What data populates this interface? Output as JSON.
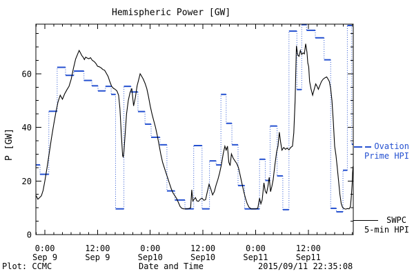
{
  "title": "Hemispheric Power [GW]",
  "y_axis": {
    "label": "P [GW]"
  },
  "footer": {
    "left": "Plot: CCMC",
    "center": "Date and Time",
    "right": "2015/09/11 22:35:08"
  },
  "legend": {
    "ovation": {
      "line1": "Ovation",
      "line2": "Prime HPI",
      "color": "#2450d0"
    },
    "swpc": {
      "line1": "SWPC",
      "line2": "5-min HPI",
      "color": "#000000"
    }
  },
  "chart_data": {
    "type": "line",
    "title": "Hemispheric Power [GW]",
    "xlabel": "Date and Time",
    "ylabel": "P [GW]",
    "x_unit": "hours since 2015-09-09 00:00 UT",
    "x_range": [
      -2.05,
      70.25
    ],
    "y_range": [
      0,
      78.5
    ],
    "y_major_ticks": [
      0,
      20,
      40,
      60
    ],
    "y_minor_step": 5,
    "x_minor_step_hours": 2,
    "x_tick_labels": [
      {
        "h": 0,
        "top": "0:00",
        "bottom": "Sep 9"
      },
      {
        "h": 12,
        "top": "12:00",
        "bottom": "Sep 9"
      },
      {
        "h": 24,
        "top": "0:00",
        "bottom": "Sep10"
      },
      {
        "h": 36,
        "top": "12:00",
        "bottom": "Sep10"
      },
      {
        "h": 48,
        "top": "0:00",
        "bottom": "Sep11"
      },
      {
        "h": 60,
        "top": "12:00",
        "bottom": "Sep11"
      }
    ],
    "grid": false,
    "legend_position": "right-outside",
    "series": [
      {
        "name": "Ovation Prime HPI",
        "color": "#2450d0",
        "style": "step-horizontal-solid-vertical-dotted",
        "steps_h0_h1_gw": [
          [
            -2.05,
            -1.1,
            26
          ],
          [
            -1.1,
            0.9,
            22.5
          ],
          [
            0.9,
            2.8,
            46
          ],
          [
            2.8,
            4.7,
            62.4
          ],
          [
            4.7,
            6.6,
            59.4
          ],
          [
            6.6,
            8.9,
            61
          ],
          [
            8.9,
            10.7,
            57.5
          ],
          [
            10.7,
            12.1,
            55.5
          ],
          [
            12.1,
            13.8,
            53.6
          ],
          [
            13.8,
            15.1,
            55.3
          ],
          [
            15.1,
            16.1,
            52.3
          ],
          [
            16.1,
            18,
            9.6
          ],
          [
            18,
            19.6,
            55.3
          ],
          [
            19.6,
            21.2,
            53.2
          ],
          [
            21.2,
            22.8,
            45.9
          ],
          [
            22.8,
            24.2,
            41.2
          ],
          [
            24.2,
            26.2,
            36.3
          ],
          [
            26.2,
            27.8,
            33.5
          ],
          [
            27.8,
            29.6,
            16.3
          ],
          [
            29.6,
            31.9,
            12.9
          ],
          [
            31.9,
            33.9,
            9.6
          ],
          [
            33.9,
            35.8,
            33.2
          ],
          [
            35.8,
            37.5,
            9.6
          ],
          [
            37.5,
            39,
            27.5
          ],
          [
            39,
            40.1,
            26
          ],
          [
            40.1,
            41.3,
            52.3
          ],
          [
            41.3,
            42.6,
            41.5
          ],
          [
            42.6,
            44,
            33.5
          ],
          [
            44,
            45.5,
            18.3
          ],
          [
            45.5,
            48.9,
            9.6
          ],
          [
            48.9,
            50.2,
            28.1
          ],
          [
            50.2,
            51.3,
            20.2
          ],
          [
            51.3,
            52.9,
            40.5
          ],
          [
            52.9,
            54.2,
            21.9
          ],
          [
            54.2,
            55.6,
            9.3
          ],
          [
            55.6,
            57.4,
            75.9
          ],
          [
            57.4,
            58.5,
            54.1
          ],
          [
            58.5,
            59.6,
            78.3
          ],
          [
            59.6,
            61.6,
            76.2
          ],
          [
            61.6,
            63.6,
            73.4
          ],
          [
            63.6,
            65.1,
            65.2
          ],
          [
            65.1,
            66.4,
            9.8
          ],
          [
            66.4,
            67.9,
            8.5
          ],
          [
            67.9,
            68.9,
            24
          ],
          [
            68.9,
            69.9,
            78
          ],
          [
            69.9,
            70.25,
            33.7
          ]
        ]
      },
      {
        "name": "SWPC 5-min HPI",
        "color": "#000000",
        "style": "solid",
        "points_h_gw": [
          [
            -2.05,
            14.7
          ],
          [
            -1.6,
            13.2
          ],
          [
            -1.2,
            13.8
          ],
          [
            -0.8,
            14.5
          ],
          [
            -0.4,
            16.5
          ],
          [
            0,
            20
          ],
          [
            0.5,
            25
          ],
          [
            1,
            30.5
          ],
          [
            1.5,
            36
          ],
          [
            2,
            41
          ],
          [
            2.5,
            45.5
          ],
          [
            3,
            49.5
          ],
          [
            3.5,
            52
          ],
          [
            4,
            50.5
          ],
          [
            4.5,
            52.5
          ],
          [
            5,
            54
          ],
          [
            5.5,
            55.3
          ],
          [
            6,
            58
          ],
          [
            6.5,
            62
          ],
          [
            7,
            65.5
          ],
          [
            7.5,
            67.5
          ],
          [
            7.8,
            68.7
          ],
          [
            8.1,
            67.8
          ],
          [
            8.4,
            66.8
          ],
          [
            8.7,
            66.2
          ],
          [
            9,
            65.3
          ],
          [
            9.3,
            66.2
          ],
          [
            9.6,
            65.9
          ],
          [
            10,
            65.6
          ],
          [
            10.4,
            66
          ],
          [
            10.8,
            65
          ],
          [
            11.2,
            64.6
          ],
          [
            11.6,
            63.9
          ],
          [
            12,
            62.8
          ],
          [
            12.4,
            62.6
          ],
          [
            12.8,
            62.2
          ],
          [
            13.2,
            61.6
          ],
          [
            13.6,
            61.3
          ],
          [
            14,
            60.2
          ],
          [
            14.4,
            59
          ],
          [
            14.8,
            57
          ],
          [
            15.2,
            55.3
          ],
          [
            15.6,
            54.6
          ],
          [
            16,
            54.2
          ],
          [
            16.4,
            53.6
          ],
          [
            16.8,
            52
          ],
          [
            17.1,
            47
          ],
          [
            17.4,
            38
          ],
          [
            17.7,
            29.5
          ],
          [
            17.85,
            28.8
          ],
          [
            18,
            31
          ],
          [
            18.3,
            38
          ],
          [
            18.6,
            45
          ],
          [
            19,
            50
          ],
          [
            19.4,
            53
          ],
          [
            19.8,
            54.5
          ],
          [
            20.2,
            48
          ],
          [
            20.6,
            51
          ],
          [
            21,
            55.5
          ],
          [
            21.4,
            58
          ],
          [
            21.7,
            60
          ],
          [
            22,
            59.2
          ],
          [
            22.4,
            58
          ],
          [
            22.8,
            56.5
          ],
          [
            23.2,
            54.5
          ],
          [
            23.6,
            51.5
          ],
          [
            24,
            48
          ],
          [
            24.4,
            45
          ],
          [
            24.8,
            42.5
          ],
          [
            25.2,
            40
          ],
          [
            25.6,
            37
          ],
          [
            26,
            33.5
          ],
          [
            26.4,
            30
          ],
          [
            26.8,
            27
          ],
          [
            27.2,
            25
          ],
          [
            27.6,
            23
          ],
          [
            28,
            21
          ],
          [
            28.4,
            19
          ],
          [
            28.8,
            17
          ],
          [
            29.2,
            15.5
          ],
          [
            29.6,
            14.5
          ],
          [
            30,
            13.5
          ],
          [
            30.4,
            12
          ],
          [
            30.8,
            10.5
          ],
          [
            31.2,
            9.8
          ],
          [
            31.6,
            9.6
          ],
          [
            32,
            9.6
          ],
          [
            32.4,
            9.6
          ],
          [
            32.8,
            9.7
          ],
          [
            33.2,
            10
          ],
          [
            33.45,
            16.7
          ],
          [
            33.7,
            12.5
          ],
          [
            34,
            13.2
          ],
          [
            34.3,
            13.8
          ],
          [
            34.6,
            12.6
          ],
          [
            35,
            12.4
          ],
          [
            35.4,
            13.2
          ],
          [
            35.8,
            13.6
          ],
          [
            36.2,
            12.8
          ],
          [
            36.6,
            13
          ],
          [
            37,
            16
          ],
          [
            37.4,
            18.8
          ],
          [
            37.8,
            17
          ],
          [
            38.2,
            14.8
          ],
          [
            38.6,
            16
          ],
          [
            39,
            18.5
          ],
          [
            39.4,
            20.5
          ],
          [
            39.8,
            23
          ],
          [
            40.2,
            26
          ],
          [
            40.6,
            30
          ],
          [
            41,
            33
          ],
          [
            41.3,
            31.5
          ],
          [
            41.6,
            33
          ],
          [
            41.9,
            27
          ],
          [
            42.2,
            25.7
          ],
          [
            42.5,
            30.1
          ],
          [
            42.9,
            28.5
          ],
          [
            43.3,
            27.5
          ],
          [
            43.7,
            26.5
          ],
          [
            44.1,
            25
          ],
          [
            44.5,
            22
          ],
          [
            44.9,
            19
          ],
          [
            45.3,
            16
          ],
          [
            45.7,
            13.5
          ],
          [
            46.1,
            11.5
          ],
          [
            46.5,
            10.2
          ],
          [
            47,
            9.6
          ],
          [
            47.5,
            9.6
          ],
          [
            48,
            9.6
          ],
          [
            48.5,
            9.8
          ],
          [
            48.9,
            13.6
          ],
          [
            49.2,
            11.5
          ],
          [
            49.5,
            13
          ],
          [
            49.9,
            19.3
          ],
          [
            50.2,
            16.2
          ],
          [
            50.5,
            15.4
          ],
          [
            50.8,
            18
          ],
          [
            51.1,
            21.4
          ],
          [
            51.4,
            16
          ],
          [
            51.7,
            18
          ],
          [
            52,
            20.5
          ],
          [
            52.4,
            26
          ],
          [
            52.8,
            31
          ],
          [
            53.1,
            33
          ],
          [
            53.4,
            38.2
          ],
          [
            53.7,
            34.5
          ],
          [
            54,
            31.5
          ],
          [
            54.4,
            32.5
          ],
          [
            54.8,
            31.8
          ],
          [
            55.2,
            32.3
          ],
          [
            55.6,
            31.6
          ],
          [
            56,
            32.5
          ],
          [
            56.4,
            33
          ],
          [
            56.7,
            38
          ],
          [
            57,
            50
          ],
          [
            57.3,
            70.4
          ],
          [
            57.6,
            67
          ],
          [
            57.9,
            66.5
          ],
          [
            58.2,
            68.7
          ],
          [
            58.5,
            67.2
          ],
          [
            58.8,
            67.8
          ],
          [
            59.1,
            67.4
          ],
          [
            59.4,
            71.2
          ],
          [
            59.7,
            68
          ],
          [
            59.9,
            64
          ],
          [
            60.1,
            62.6
          ],
          [
            60.3,
            57.1
          ],
          [
            60.6,
            54.5
          ],
          [
            61,
            52
          ],
          [
            61.4,
            54.5
          ],
          [
            61.7,
            56.2
          ],
          [
            62,
            55.3
          ],
          [
            62.3,
            54.2
          ],
          [
            62.6,
            55.5
          ],
          [
            63,
            57.1
          ],
          [
            63.4,
            58
          ],
          [
            63.8,
            58.5
          ],
          [
            64.2,
            58.8
          ],
          [
            64.5,
            58
          ],
          [
            64.8,
            57.1
          ],
          [
            65.1,
            54.5
          ],
          [
            65.4,
            50
          ],
          [
            65.7,
            42
          ],
          [
            66,
            33
          ],
          [
            66.3,
            29.6
          ],
          [
            66.6,
            25
          ],
          [
            66.9,
            20
          ],
          [
            67.2,
            15
          ],
          [
            67.5,
            11.6
          ],
          [
            67.8,
            10.2
          ],
          [
            68.1,
            9.7
          ],
          [
            68.5,
            9.5
          ],
          [
            68.9,
            9.7
          ],
          [
            69.3,
            9.6
          ],
          [
            69.6,
            10.5
          ],
          [
            69.8,
            14
          ],
          [
            70,
            19
          ],
          [
            70.1,
            23.2
          ],
          [
            70.2,
            25.5
          ]
        ]
      }
    ]
  }
}
